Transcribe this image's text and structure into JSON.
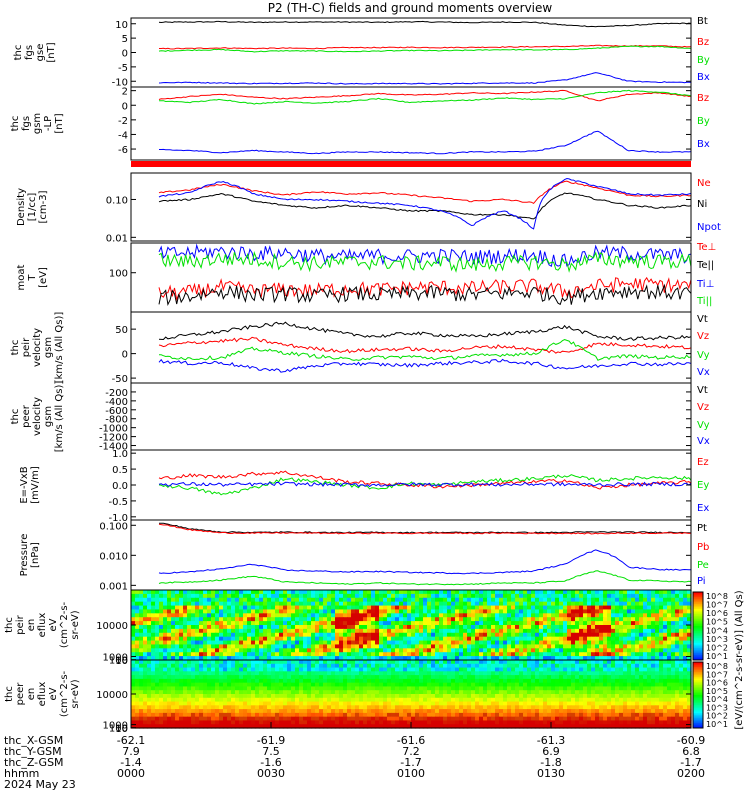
{
  "title": "P2 (TH-C) fields and ground moments overview",
  "footer": {
    "row_labels": [
      "thc_X-GSM",
      "thc_Y-GSM",
      "thc_Z-GSM",
      "hhmm",
      "2024 May 23"
    ],
    "ticks": [
      {
        "vals": [
          "-62.1",
          "7.9",
          "-1.4",
          "0000"
        ]
      },
      {
        "vals": [
          "-61.9",
          "7.5",
          "-1.6",
          "0030"
        ]
      },
      {
        "vals": [
          "-61.6",
          "7.2",
          "-1.7",
          "0100"
        ]
      },
      {
        "vals": [
          "-61.3",
          "6.9",
          "-1.8",
          "0130"
        ]
      },
      {
        "vals": [
          "-60.9",
          "6.8",
          "-1.7",
          "0200"
        ]
      }
    ]
  },
  "colorbar": {
    "label": "[eV/(cm^2-s-sr-eV)] (All Qs)",
    "upper_ticks": [
      "10^8",
      "10^7",
      "10^6",
      "10^5",
      "10^4",
      "10^3",
      "10^2",
      "10^1"
    ],
    "lower_ticks": [
      "10^8",
      "10^7",
      "10^6",
      "10^5",
      "10^4",
      "10^3",
      "10^2",
      "10^1"
    ]
  },
  "colors": {
    "black": "#000000",
    "red": "#ff0000",
    "green": "#00e000",
    "blue": "#0000ff"
  },
  "chart_data": [
    {
      "type": "line",
      "ylabel": [
        "thc",
        "fgs",
        "gse",
        "[nT]"
      ],
      "yticks": [
        "10",
        "5",
        "0",
        "-5",
        "-10"
      ],
      "ylim": [
        -12,
        12
      ],
      "series": [
        {
          "name": "Bt",
          "color": "black",
          "values": [
            10.5,
            10.6,
            10.7,
            10.5,
            10.6,
            10.6,
            10.6,
            10.5,
            10.7,
            10.6,
            10.4,
            10.6,
            10.5,
            9.5,
            9.0,
            9.4,
            10.0,
            10.2
          ]
        },
        {
          "name": "Bz",
          "color": "red",
          "values": [
            1.3,
            1.4,
            1.6,
            1.4,
            1.5,
            1.4,
            1.7,
            1.7,
            1.8,
            1.7,
            1.8,
            1.9,
            2.0,
            2.1,
            2.4,
            2.3,
            2.3,
            1.9
          ]
        },
        {
          "name": "By",
          "color": "green",
          "values": [
            0.5,
            0.8,
            1.0,
            0.3,
            0.6,
            0.5,
            0.3,
            0.5,
            0.7,
            0.6,
            0.8,
            1.0,
            0.9,
            1.0,
            1.5,
            2.1,
            2.1,
            1.4
          ]
        },
        {
          "name": "Bx",
          "color": "blue",
          "values": [
            -10.5,
            -10.4,
            -10.6,
            -10.8,
            -10.7,
            -10.6,
            -10.9,
            -10.8,
            -10.8,
            -10.9,
            -10.7,
            -10.6,
            -10.6,
            -9.5,
            -7.0,
            -10.0,
            -10.3,
            -10.4
          ]
        }
      ]
    },
    {
      "type": "line",
      "ylabel": [
        "thc",
        "fgs",
        "gsm",
        "-LP",
        "[nT]"
      ],
      "yticks": [
        "2",
        "0",
        "-2",
        "-4",
        "-6"
      ],
      "ylim": [
        -7.5,
        2.5
      ],
      "series": [
        {
          "name": "Bz",
          "color": "red",
          "values": [
            0.8,
            1.2,
            1.5,
            1.1,
            0.9,
            1.1,
            1.3,
            1.6,
            1.4,
            1.5,
            1.7,
            1.6,
            1.8,
            2.0,
            0.6,
            1.5,
            1.7,
            1.2
          ]
        },
        {
          "name": "By",
          "color": "green",
          "values": [
            0.6,
            0.4,
            0.8,
            0.2,
            0.5,
            0.3,
            0.5,
            0.9,
            0.4,
            0.6,
            0.7,
            1.0,
            0.8,
            0.9,
            1.7,
            2.0,
            1.8,
            1.3
          ]
        },
        {
          "name": "Bx",
          "color": "blue",
          "values": [
            -6.1,
            -6.2,
            -6.5,
            -6.2,
            -6.4,
            -6.6,
            -6.4,
            -6.4,
            -6.5,
            -6.6,
            -6.4,
            -6.4,
            -6.3,
            -5.5,
            -3.5,
            -6.2,
            -6.4,
            -6.4
          ]
        }
      ]
    },
    {
      "type": "line",
      "ylabel": [
        "Density",
        "[1/cc]",
        "[cm-3]"
      ],
      "yticks": [
        "0.10",
        "0.01"
      ],
      "log": true,
      "ylim": [
        0.008,
        0.5
      ],
      "series": [
        {
          "name": "Ne",
          "color": "red",
          "values": [
            0.15,
            0.18,
            0.25,
            0.17,
            0.13,
            0.16,
            0.14,
            0.15,
            0.13,
            0.11,
            0.09,
            0.1,
            0.08,
            0.3,
            0.2,
            0.13,
            0.12,
            0.13
          ]
        },
        {
          "name": "Ni",
          "color": "black",
          "values": [
            0.09,
            0.1,
            0.14,
            0.09,
            0.07,
            0.06,
            0.07,
            0.06,
            0.05,
            0.05,
            0.04,
            0.04,
            0.03,
            0.15,
            0.1,
            0.07,
            0.06,
            0.07
          ]
        },
        {
          "name": "Npot",
          "color": "blue",
          "values": [
            0.12,
            0.15,
            0.3,
            0.14,
            0.1,
            0.1,
            0.09,
            0.08,
            0.07,
            0.05,
            0.02,
            0.05,
            0.015,
            0.35,
            0.22,
            0.14,
            0.13,
            0.14
          ]
        }
      ]
    },
    {
      "type": "line",
      "ylabel": [
        "moat",
        "T",
        "[eV]"
      ],
      "yticks": [
        "100"
      ],
      "log": true,
      "ylim": [
        40,
        200
      ],
      "series": [
        {
          "name": "Te⊥",
          "color": "red",
          "values": [
            62,
            64,
            72,
            66,
            68,
            66,
            70,
            68,
            71,
            72,
            70,
            73,
            74,
            64,
            74,
            78,
            76,
            74
          ]
        },
        {
          "name": "Te||",
          "color": "black",
          "values": [
            56,
            58,
            66,
            60,
            62,
            58,
            62,
            60,
            62,
            63,
            60,
            62,
            64,
            56,
            64,
            66,
            64,
            62
          ]
        },
        {
          "name": "Ti⊥",
          "color": "blue",
          "values": [
            155,
            160,
            165,
            158,
            160,
            150,
            145,
            150,
            148,
            150,
            145,
            150,
            152,
            130,
            160,
            158,
            152,
            150
          ]
        },
        {
          "name": "Ti||",
          "color": "green",
          "values": [
            135,
            130,
            140,
            138,
            130,
            125,
            128,
            130,
            125,
            128,
            120,
            126,
            130,
            120,
            138,
            135,
            130,
            132
          ]
        }
      ]
    },
    {
      "type": "line",
      "ylabel": [
        "thc",
        "peir",
        "velocity",
        "gsm",
        "[km/s (All Qs)]"
      ],
      "yticks": [
        "50",
        "0",
        "-50"
      ],
      "ylim": [
        -60,
        85
      ],
      "series": [
        {
          "name": "Vt",
          "color": "black",
          "values": [
            30,
            38,
            45,
            55,
            62,
            50,
            40,
            35,
            42,
            38,
            35,
            40,
            45,
            55,
            35,
            30,
            32,
            34
          ]
        },
        {
          "name": "Vz",
          "color": "red",
          "values": [
            15,
            22,
            26,
            30,
            18,
            10,
            5,
            8,
            10,
            5,
            12,
            15,
            8,
            2,
            20,
            18,
            15,
            12
          ]
        },
        {
          "name": "Vy",
          "color": "green",
          "values": [
            -5,
            -10,
            -8,
            10,
            2,
            -5,
            -12,
            -8,
            -6,
            -10,
            -5,
            -2,
            0,
            30,
            -10,
            -5,
            -8,
            -6
          ]
        },
        {
          "name": "Vx",
          "color": "blue",
          "values": [
            -15,
            -20,
            -18,
            -30,
            -35,
            -25,
            -20,
            -22,
            -24,
            -20,
            -18,
            -15,
            -20,
            -30,
            -25,
            -20,
            -22,
            -20
          ]
        }
      ]
    },
    {
      "type": "line",
      "ylabel": [
        "thc",
        "peer",
        "velocity",
        "gsm",
        "[km/s (All Qs)]"
      ],
      "yticks": [
        "-200",
        "-400",
        "-600",
        "-800",
        "-1000",
        "-1200",
        "-1400"
      ],
      "ylim": [
        -1500,
        0
      ],
      "series": [
        {
          "name": "Vt",
          "color": "black",
          "values": []
        },
        {
          "name": "Vz",
          "color": "red",
          "values": []
        },
        {
          "name": "Vy",
          "color": "green",
          "values": []
        },
        {
          "name": "Vx",
          "color": "blue",
          "values": []
        }
      ]
    },
    {
      "type": "line",
      "ylabel": [
        "E=-VxB",
        "[mV/m]"
      ],
      "yticks": [
        "1.0",
        "0.5",
        "0.0",
        "-0.5",
        "-1.0"
      ],
      "ylim": [
        -1.1,
        1.1
      ],
      "series": [
        {
          "name": "Ez",
          "color": "red",
          "values": [
            0.2,
            0.3,
            0.25,
            0.35,
            0.4,
            0.25,
            0.1,
            0.05,
            0.0,
            -0.05,
            0.0,
            0.05,
            0.1,
            0.15,
            -0.1,
            0.0,
            0.05,
            0.1
          ]
        },
        {
          "name": "Ey",
          "color": "green",
          "values": [
            0.0,
            -0.1,
            -0.3,
            -0.1,
            0.2,
            0.1,
            0.0,
            -0.1,
            0.05,
            0.0,
            0.1,
            0.15,
            0.2,
            0.3,
            0.15,
            0.2,
            0.25,
            0.2
          ]
        },
        {
          "name": "Ex",
          "color": "blue",
          "values": [
            0.02,
            0.03,
            0.01,
            0.02,
            0.04,
            0.02,
            0.01,
            0.0,
            0.02,
            0.01,
            0.02,
            0.01,
            0.03,
            0.02,
            0.01,
            0.02,
            0.03,
            0.02
          ]
        }
      ]
    },
    {
      "type": "line",
      "ylabel": [
        "Pressure",
        "[nPa]"
      ],
      "yticks": [
        "0.100",
        "0.010",
        "0.001"
      ],
      "log": true,
      "ylim": [
        0.0007,
        0.15
      ],
      "series": [
        {
          "name": "Pt",
          "color": "black",
          "values": [
            0.12,
            0.075,
            0.06,
            0.058,
            0.059,
            0.058,
            0.057,
            0.058,
            0.057,
            0.058,
            0.057,
            0.058,
            0.057,
            0.058,
            0.06,
            0.059,
            0.058,
            0.058
          ]
        },
        {
          "name": "Pb",
          "color": "red",
          "values": [
            0.11,
            0.07,
            0.056,
            0.055,
            0.056,
            0.055,
            0.054,
            0.055,
            0.054,
            0.055,
            0.054,
            0.055,
            0.054,
            0.054,
            0.053,
            0.055,
            0.055,
            0.055
          ]
        },
        {
          "name": "Pe",
          "color": "green",
          "values": [
            0.0012,
            0.0013,
            0.0015,
            0.002,
            0.0013,
            0.0012,
            0.0011,
            0.0012,
            0.0011,
            0.0011,
            0.0011,
            0.0012,
            0.0012,
            0.0014,
            0.003,
            0.0015,
            0.0014,
            0.0013
          ]
        },
        {
          "name": "Pi",
          "color": "blue",
          "values": [
            0.0025,
            0.0028,
            0.0035,
            0.005,
            0.0032,
            0.003,
            0.0028,
            0.0029,
            0.0027,
            0.0026,
            0.0025,
            0.0027,
            0.003,
            0.005,
            0.015,
            0.004,
            0.0034,
            0.0032
          ]
        }
      ]
    },
    {
      "type": "heatmap",
      "ylabel": [
        "thc",
        "peir",
        "en",
        "eflux",
        "eV",
        "(cm^2-s-",
        "sr-eV)"
      ],
      "yticks": [
        "10000",
        "1000",
        "100",
        "10"
      ],
      "ylim": [
        7,
        20000
      ]
    },
    {
      "type": "heatmap",
      "ylabel": [
        "thc",
        "peer",
        "en",
        "eflux",
        "eV",
        "(cm^2-s-",
        "sr-eV)"
      ],
      "yticks": [
        "10000",
        "1000",
        "100",
        "10"
      ],
      "ylim": [
        7,
        20000
      ]
    }
  ]
}
